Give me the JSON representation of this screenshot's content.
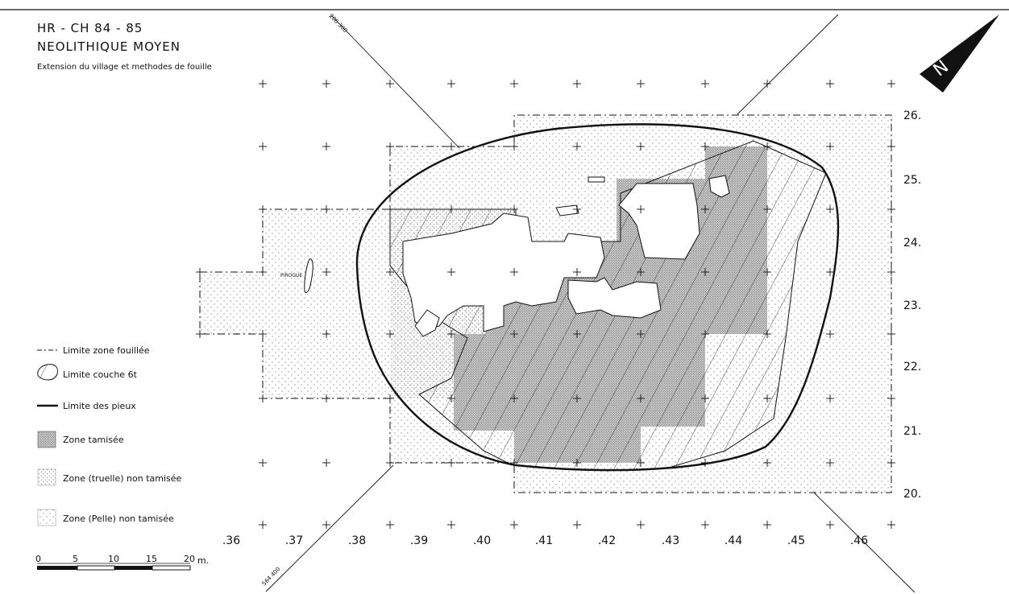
{
  "header": {
    "title_line1": "HR - CH   84 - 85",
    "title_line2": "NEOLITHIQUE MOYEN",
    "subtitle": "Extension du village et methodes de fouille"
  },
  "legend": [
    {
      "symbol": "dash-dot-line",
      "label": "Limite zone fouillée"
    },
    {
      "symbol": "thin-outline",
      "label": "Limite couche 6t"
    },
    {
      "symbol": "thick-line",
      "label": "Limite des pieux"
    },
    {
      "symbol": "dense-stipple",
      "label": "Zone tamisée"
    },
    {
      "symbol": "light-stipple",
      "label": "Zone (truelle) non tamisée"
    },
    {
      "symbol": "sparse-stipple",
      "label": "Zone (Pelle) non tamisée"
    }
  ],
  "grid": {
    "x_labels": [
      ".36",
      ".37",
      ".38",
      ".39",
      ".40",
      ".41",
      ".42",
      ".43",
      ".44",
      ".45",
      ".46"
    ],
    "y_labels": [
      "26.",
      "25.",
      "24.",
      "23.",
      "22.",
      "21.",
      "20."
    ]
  },
  "coordinates": {
    "top": "206 300",
    "bottom": "564 400"
  },
  "annotation": "PIROGUE",
  "north_arrow": {
    "label": "N",
    "icon": "north-arrow-icon"
  },
  "scale_bar": {
    "ticks": [
      "0",
      "5",
      "10",
      "15",
      "20"
    ],
    "unit": "m."
  },
  "colors": {
    "ink": "#111111",
    "paper": "#ffffff"
  }
}
